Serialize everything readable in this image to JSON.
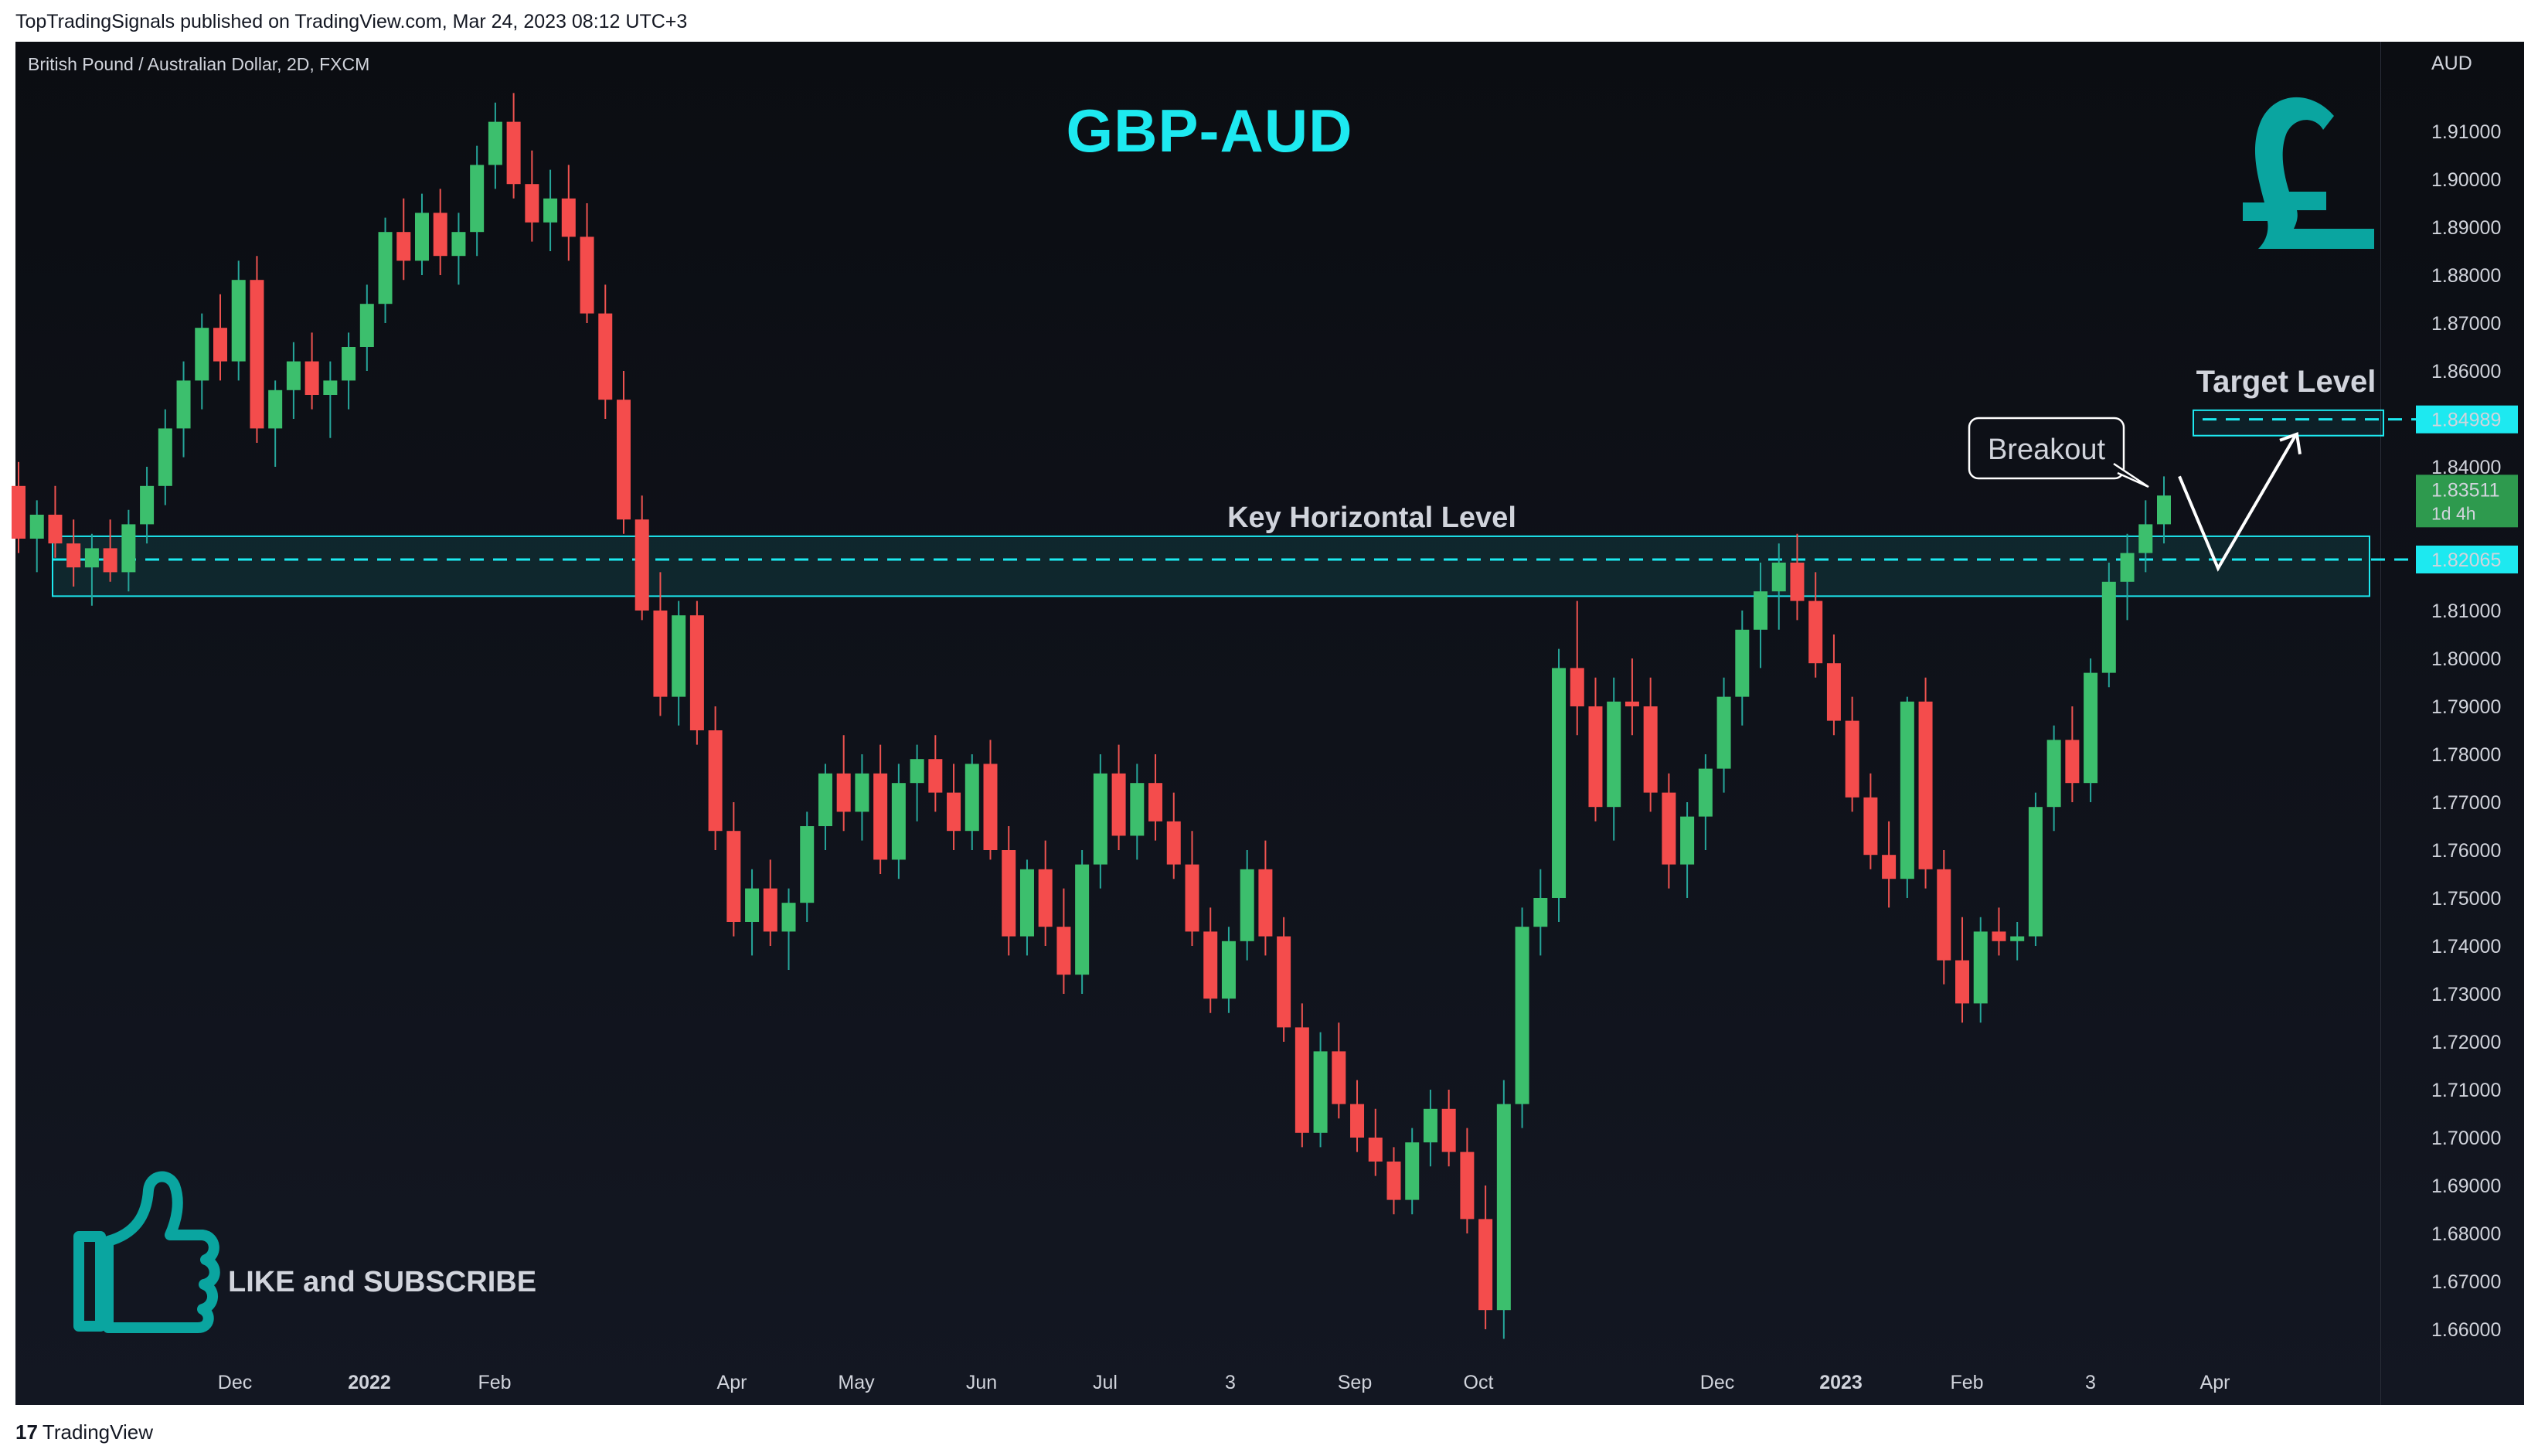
{
  "header": {
    "publish_info": "TopTradingSignals published on TradingView.com, Mar 24, 2023 08:12 UTC+3"
  },
  "chart": {
    "symbol_line": "British Pound / Australian Dollar, 2D, FXCM",
    "title": "GBP-AUD",
    "currency": "AUD",
    "annotations": {
      "key_level": "Key Horizontal Level",
      "target_level": "Target Level",
      "breakout": "Breakout",
      "cta": "LIKE and SUBSCRIBE"
    },
    "price_tags": {
      "target": "1.84989",
      "current": "1.83511",
      "countdown": "1d 4h",
      "key": "1.82065"
    }
  },
  "footer": {
    "brand": "TradingView"
  },
  "chart_data": {
    "type": "candlestick",
    "title": "GBP-AUD",
    "y_axis": {
      "label": "AUD",
      "ticks": [
        1.91,
        1.9,
        1.89,
        1.88,
        1.87,
        1.86,
        1.84,
        1.81,
        1.8,
        1.79,
        1.78,
        1.77,
        1.76,
        1.75,
        1.74,
        1.73,
        1.72,
        1.71,
        1.7,
        1.69,
        1.68,
        1.67,
        1.66
      ],
      "ylim": [
        1.653,
        1.925
      ]
    },
    "x_axis_labels": [
      "Dec",
      "2022",
      "Feb",
      "Apr",
      "May",
      "Jun",
      "Jul",
      "3",
      "Sep",
      "Oct",
      "Dec",
      "2023",
      "Feb",
      "3",
      "Apr"
    ],
    "levels": {
      "key_horizontal": 1.82065,
      "key_zone": [
        1.813,
        1.8255
      ],
      "target": 1.84989,
      "target_zone": [
        1.8465,
        1.8518
      ],
      "last_price": 1.83511
    },
    "projection": [
      [
        1.838,
        1.837
      ],
      [
        1.8188,
        1.817
      ],
      [
        1.8465,
        1.847
      ]
    ],
    "ohlc_approx": [
      [
        1.836,
        1.841,
        1.822,
        1.825
      ],
      [
        1.825,
        1.833,
        1.818,
        1.83
      ],
      [
        1.83,
        1.836,
        1.821,
        1.824
      ],
      [
        1.824,
        1.829,
        1.815,
        1.819
      ],
      [
        1.819,
        1.826,
        1.811,
        1.823
      ],
      [
        1.823,
        1.829,
        1.816,
        1.818
      ],
      [
        1.818,
        1.831,
        1.814,
        1.828
      ],
      [
        1.828,
        1.84,
        1.824,
        1.836
      ],
      [
        1.836,
        1.852,
        1.832,
        1.848
      ],
      [
        1.848,
        1.862,
        1.842,
        1.858
      ],
      [
        1.858,
        1.872,
        1.852,
        1.869
      ],
      [
        1.869,
        1.876,
        1.858,
        1.862
      ],
      [
        1.862,
        1.883,
        1.858,
        1.879
      ],
      [
        1.879,
        1.884,
        1.845,
        1.848
      ],
      [
        1.848,
        1.858,
        1.84,
        1.856
      ],
      [
        1.856,
        1.866,
        1.85,
        1.862
      ],
      [
        1.862,
        1.868,
        1.852,
        1.855
      ],
      [
        1.855,
        1.862,
        1.846,
        1.858
      ],
      [
        1.858,
        1.868,
        1.852,
        1.865
      ],
      [
        1.865,
        1.878,
        1.86,
        1.874
      ],
      [
        1.874,
        1.892,
        1.87,
        1.889
      ],
      [
        1.889,
        1.896,
        1.879,
        1.883
      ],
      [
        1.883,
        1.897,
        1.88,
        1.893
      ],
      [
        1.893,
        1.898,
        1.88,
        1.884
      ],
      [
        1.884,
        1.893,
        1.878,
        1.889
      ],
      [
        1.889,
        1.907,
        1.884,
        1.903
      ],
      [
        1.903,
        1.916,
        1.898,
        1.912
      ],
      [
        1.912,
        1.918,
        1.896,
        1.899
      ],
      [
        1.899,
        1.906,
        1.887,
        1.891
      ],
      [
        1.891,
        1.902,
        1.885,
        1.896
      ],
      [
        1.896,
        1.903,
        1.883,
        1.888
      ],
      [
        1.888,
        1.895,
        1.87,
        1.872
      ],
      [
        1.872,
        1.878,
        1.85,
        1.854
      ],
      [
        1.854,
        1.86,
        1.826,
        1.829
      ],
      [
        1.829,
        1.834,
        1.808,
        1.81
      ],
      [
        1.81,
        1.818,
        1.788,
        1.792
      ],
      [
        1.792,
        1.812,
        1.786,
        1.809
      ],
      [
        1.809,
        1.812,
        1.782,
        1.785
      ],
      [
        1.785,
        1.79,
        1.76,
        1.764
      ],
      [
        1.764,
        1.77,
        1.742,
        1.745
      ],
      [
        1.745,
        1.756,
        1.738,
        1.752
      ],
      [
        1.752,
        1.758,
        1.74,
        1.743
      ],
      [
        1.743,
        1.752,
        1.735,
        1.749
      ],
      [
        1.749,
        1.768,
        1.745,
        1.765
      ],
      [
        1.765,
        1.778,
        1.76,
        1.776
      ],
      [
        1.776,
        1.784,
        1.764,
        1.768
      ],
      [
        1.768,
        1.78,
        1.762,
        1.776
      ],
      [
        1.776,
        1.782,
        1.755,
        1.758
      ],
      [
        1.758,
        1.778,
        1.754,
        1.774
      ],
      [
        1.774,
        1.782,
        1.766,
        1.779
      ],
      [
        1.779,
        1.784,
        1.768,
        1.772
      ],
      [
        1.772,
        1.778,
        1.76,
        1.764
      ],
      [
        1.764,
        1.78,
        1.76,
        1.778
      ],
      [
        1.778,
        1.783,
        1.758,
        1.76
      ],
      [
        1.76,
        1.765,
        1.738,
        1.742
      ],
      [
        1.742,
        1.758,
        1.738,
        1.756
      ],
      [
        1.756,
        1.762,
        1.74,
        1.744
      ],
      [
        1.744,
        1.752,
        1.73,
        1.734
      ],
      [
        1.734,
        1.76,
        1.73,
        1.757
      ],
      [
        1.757,
        1.78,
        1.752,
        1.776
      ],
      [
        1.776,
        1.782,
        1.76,
        1.763
      ],
      [
        1.763,
        1.778,
        1.758,
        1.774
      ],
      [
        1.774,
        1.78,
        1.762,
        1.766
      ],
      [
        1.766,
        1.772,
        1.754,
        1.757
      ],
      [
        1.757,
        1.764,
        1.74,
        1.743
      ],
      [
        1.743,
        1.748,
        1.726,
        1.729
      ],
      [
        1.729,
        1.744,
        1.726,
        1.741
      ],
      [
        1.741,
        1.76,
        1.737,
        1.756
      ],
      [
        1.756,
        1.762,
        1.738,
        1.742
      ],
      [
        1.742,
        1.746,
        1.72,
        1.723
      ],
      [
        1.723,
        1.728,
        1.698,
        1.701
      ],
      [
        1.701,
        1.722,
        1.698,
        1.718
      ],
      [
        1.718,
        1.724,
        1.704,
        1.707
      ],
      [
        1.707,
        1.712,
        1.697,
        1.7
      ],
      [
        1.7,
        1.706,
        1.692,
        1.695
      ],
      [
        1.695,
        1.698,
        1.684,
        1.687
      ],
      [
        1.687,
        1.702,
        1.684,
        1.699
      ],
      [
        1.699,
        1.71,
        1.694,
        1.706
      ],
      [
        1.706,
        1.71,
        1.694,
        1.697
      ],
      [
        1.697,
        1.702,
        1.68,
        1.683
      ],
      [
        1.683,
        1.69,
        1.66,
        1.664
      ],
      [
        1.664,
        1.712,
        1.658,
        1.707
      ],
      [
        1.707,
        1.748,
        1.702,
        1.744
      ],
      [
        1.744,
        1.756,
        1.738,
        1.75
      ],
      [
        1.75,
        1.802,
        1.745,
        1.798
      ],
      [
        1.798,
        1.812,
        1.784,
        1.79
      ],
      [
        1.79,
        1.796,
        1.766,
        1.769
      ],
      [
        1.769,
        1.796,
        1.762,
        1.791
      ],
      [
        1.791,
        1.8,
        1.784,
        1.79
      ],
      [
        1.79,
        1.796,
        1.768,
        1.772
      ],
      [
        1.772,
        1.776,
        1.752,
        1.757
      ],
      [
        1.757,
        1.77,
        1.75,
        1.767
      ],
      [
        1.767,
        1.78,
        1.76,
        1.777
      ],
      [
        1.777,
        1.796,
        1.772,
        1.792
      ],
      [
        1.792,
        1.81,
        1.786,
        1.806
      ],
      [
        1.806,
        1.82,
        1.798,
        1.814
      ],
      [
        1.814,
        1.824,
        1.806,
        1.82
      ],
      [
        1.82,
        1.826,
        1.808,
        1.812
      ],
      [
        1.812,
        1.818,
        1.796,
        1.799
      ],
      [
        1.799,
        1.805,
        1.784,
        1.787
      ],
      [
        1.787,
        1.792,
        1.768,
        1.771
      ],
      [
        1.771,
        1.776,
        1.756,
        1.759
      ],
      [
        1.759,
        1.766,
        1.748,
        1.754
      ],
      [
        1.754,
        1.792,
        1.75,
        1.791
      ],
      [
        1.791,
        1.796,
        1.752,
        1.756
      ],
      [
        1.756,
        1.76,
        1.732,
        1.737
      ],
      [
        1.737,
        1.746,
        1.724,
        1.728
      ],
      [
        1.728,
        1.746,
        1.724,
        1.743
      ],
      [
        1.743,
        1.748,
        1.738,
        1.741
      ],
      [
        1.741,
        1.745,
        1.737,
        1.742
      ],
      [
        1.742,
        1.772,
        1.74,
        1.769
      ],
      [
        1.769,
        1.786,
        1.764,
        1.783
      ],
      [
        1.783,
        1.79,
        1.77,
        1.774
      ],
      [
        1.774,
        1.8,
        1.77,
        1.797
      ],
      [
        1.797,
        1.82,
        1.794,
        1.816
      ],
      [
        1.816,
        1.826,
        1.808,
        1.822
      ],
      [
        1.822,
        1.833,
        1.818,
        1.828
      ],
      [
        1.828,
        1.838,
        1.824,
        1.834
      ]
    ]
  }
}
